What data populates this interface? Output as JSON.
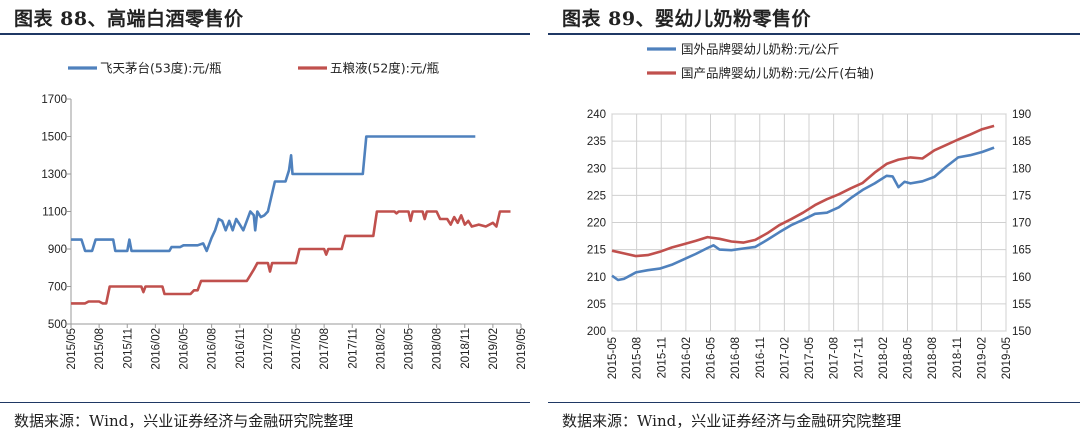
{
  "left": {
    "figure_title": "图表 88、高端白酒零售价",
    "source": "数据来源：Wind，兴业证券经济与金融研究院整理"
  },
  "right": {
    "figure_title": "图表 89、婴幼儿奶粉零售价",
    "source": "数据来源：Wind，兴业证券经济与金融研究院整理"
  },
  "colors": {
    "blue": "#4f81bd",
    "red": "#c0504d",
    "rule": "#1f3864"
  },
  "chart_data": [
    {
      "type": "line",
      "x": [
        "2015/05",
        "2015/08",
        "2015/11",
        "2016/02",
        "2016/05",
        "2016/08",
        "2016/11",
        "2017/02",
        "2017/05",
        "2017/08",
        "2017/11",
        "2018/02",
        "2018/05",
        "2018/08",
        "2018/11",
        "2019/02",
        "2019/05"
      ],
      "ylim": [
        500,
        1700
      ],
      "yticks": [
        500,
        700,
        900,
        1100,
        1300,
        1500,
        1700
      ],
      "legend_position": "top",
      "grid": false,
      "series": [
        {
          "name": "飞天茅台(53度):元/瓶",
          "color": "#4f81bd",
          "points": [
            [
              0,
              950
            ],
            [
              1.5,
              950
            ],
            [
              2,
              890
            ],
            [
              3,
              890
            ],
            [
              3.5,
              950
            ],
            [
              6,
              950
            ],
            [
              6.3,
              890
            ],
            [
              8,
              890
            ],
            [
              8.3,
              950
            ],
            [
              8.6,
              890
            ],
            [
              13,
              890
            ],
            [
              14,
              890
            ],
            [
              14.3,
              910
            ],
            [
              15.5,
              910
            ],
            [
              16,
              920
            ],
            [
              18,
              920
            ],
            [
              18.8,
              930
            ],
            [
              19.3,
              890
            ],
            [
              19.6,
              920
            ],
            [
              20,
              960
            ],
            [
              20.5,
              1000
            ],
            [
              21,
              1060
            ],
            [
              21.5,
              1050
            ],
            [
              22,
              1000
            ],
            [
              22.5,
              1050
            ],
            [
              23,
              1000
            ],
            [
              23.5,
              1060
            ],
            [
              24,
              1030
            ],
            [
              24.5,
              1000
            ],
            [
              25,
              1050
            ],
            [
              25.5,
              1100
            ],
            [
              26,
              1080
            ],
            [
              26.2,
              1000
            ],
            [
              26.5,
              1100
            ],
            [
              27,
              1070
            ],
            [
              27.5,
              1080
            ],
            [
              28,
              1100
            ],
            [
              29,
              1260
            ],
            [
              30.5,
              1260
            ],
            [
              31,
              1320
            ],
            [
              31.3,
              1400
            ],
            [
              31.5,
              1300
            ],
            [
              40,
              1300
            ],
            [
              41.5,
              1300
            ],
            [
              42,
              1500
            ],
            [
              57.5,
              1500
            ]
          ]
        },
        {
          "name": "五粮液(52度):元/瓶",
          "color": "#c0504d",
          "points": [
            [
              0,
              610
            ],
            [
              2,
              610
            ],
            [
              2.5,
              620
            ],
            [
              4,
              620
            ],
            [
              4.5,
              610
            ],
            [
              5,
              610
            ],
            [
              5.5,
              700
            ],
            [
              10,
              700
            ],
            [
              10.3,
              670
            ],
            [
              10.6,
              700
            ],
            [
              12,
              700
            ],
            [
              12.5,
              700
            ],
            [
              13,
              700
            ],
            [
              13.3,
              660
            ],
            [
              17,
              660
            ],
            [
              17.5,
              680
            ],
            [
              18,
              680
            ],
            [
              18.5,
              730
            ],
            [
              25,
              730
            ],
            [
              25.5,
              760
            ],
            [
              26,
              790
            ],
            [
              26.5,
              825
            ],
            [
              28,
              825
            ],
            [
              28.3,
              780
            ],
            [
              28.6,
              825
            ],
            [
              32,
              825
            ],
            [
              32.5,
              900
            ],
            [
              36,
              900
            ],
            [
              36.3,
              870
            ],
            [
              36.6,
              900
            ],
            [
              38,
              900
            ],
            [
              38.5,
              900
            ],
            [
              39,
              970
            ],
            [
              43,
              970
            ],
            [
              43.5,
              1100
            ],
            [
              46,
              1100
            ],
            [
              46.3,
              1090
            ],
            [
              46.6,
              1100
            ],
            [
              48,
              1100
            ],
            [
              48.3,
              1050
            ],
            [
              48.6,
              1100
            ],
            [
              50,
              1100
            ],
            [
              50.3,
              1060
            ],
            [
              50.6,
              1100
            ],
            [
              52,
              1100
            ],
            [
              52.5,
              1060
            ],
            [
              53.5,
              1060
            ],
            [
              54,
              1030
            ],
            [
              54.5,
              1070
            ],
            [
              55,
              1040
            ],
            [
              55.5,
              1080
            ],
            [
              56,
              1030
            ],
            [
              56.5,
              1050
            ],
            [
              57,
              1020
            ],
            [
              58,
              1030
            ],
            [
              59,
              1020
            ],
            [
              60,
              1040
            ],
            [
              60.5,
              1020
            ],
            [
              61,
              1100
            ],
            [
              62.5,
              1100
            ]
          ]
        }
      ]
    },
    {
      "type": "line",
      "x": [
        "2015-05",
        "2015-08",
        "2015-11",
        "2016-02",
        "2016-05",
        "2016-08",
        "2016-11",
        "2017-02",
        "2017-05",
        "2017-08",
        "2017-11",
        "2018-02",
        "2018-05",
        "2018-08",
        "2018-11",
        "2019-02",
        "2019-05"
      ],
      "ylim": [
        200,
        240
      ],
      "yticks": [
        200,
        205,
        210,
        215,
        220,
        225,
        230,
        235,
        240
      ],
      "y2lim": [
        150,
        190
      ],
      "y2ticks": [
        150,
        155,
        160,
        165,
        170,
        175,
        180,
        185,
        190
      ],
      "legend_position": "top",
      "grid": true,
      "series": [
        {
          "name": "国外品牌婴幼儿奶粉:元/公斤",
          "color": "#4f81bd",
          "axis": "left",
          "points": [
            [
              0,
              210.2
            ],
            [
              0.5,
              209.4
            ],
            [
              1,
              209.6
            ],
            [
              1.5,
              210.2
            ],
            [
              2,
              210.8
            ],
            [
              3,
              211.2
            ],
            [
              4,
              211.5
            ],
            [
              5,
              212.2
            ],
            [
              6,
              213.2
            ],
            [
              7,
              214.2
            ],
            [
              8,
              215.3
            ],
            [
              8.5,
              215.8
            ],
            [
              9,
              215.0
            ],
            [
              10,
              214.9
            ],
            [
              11,
              215.2
            ],
            [
              12,
              215.5
            ],
            [
              13,
              216.8
            ],
            [
              14,
              218.2
            ],
            [
              15,
              219.5
            ],
            [
              16,
              220.5
            ],
            [
              17,
              221.6
            ],
            [
              18,
              221.8
            ],
            [
              19,
              222.8
            ],
            [
              20,
              224.5
            ],
            [
              21,
              226.0
            ],
            [
              22,
              227.2
            ],
            [
              23,
              228.6
            ],
            [
              23.5,
              228.5
            ],
            [
              24,
              226.5
            ],
            [
              24.5,
              227.5
            ],
            [
              25,
              227.2
            ],
            [
              26,
              227.6
            ],
            [
              27,
              228.4
            ],
            [
              28,
              230.3
            ],
            [
              29,
              232.0
            ],
            [
              30,
              232.4
            ],
            [
              31,
              233.0
            ],
            [
              32,
              233.8
            ]
          ]
        },
        {
          "name": "国产品牌婴幼儿奶粉:元/公斤(右轴)",
          "color": "#c0504d",
          "axis": "right",
          "points": [
            [
              0,
              164.8
            ],
            [
              1,
              164.3
            ],
            [
              2,
              163.8
            ],
            [
              3,
              164.0
            ],
            [
              4,
              164.6
            ],
            [
              5,
              165.4
            ],
            [
              6,
              166.0
            ],
            [
              7,
              166.6
            ],
            [
              8,
              167.3
            ],
            [
              9,
              167.0
            ],
            [
              10,
              166.5
            ],
            [
              11,
              166.3
            ],
            [
              12,
              166.8
            ],
            [
              13,
              168.0
            ],
            [
              14,
              169.5
            ],
            [
              15,
              170.6
            ],
            [
              16,
              171.8
            ],
            [
              17,
              173.2
            ],
            [
              18,
              174.3
            ],
            [
              19,
              175.2
            ],
            [
              20,
              176.3
            ],
            [
              21,
              177.3
            ],
            [
              22,
              179.2
            ],
            [
              23,
              180.8
            ],
            [
              24,
              181.6
            ],
            [
              25,
              182.0
            ],
            [
              26,
              181.8
            ],
            [
              27,
              183.3
            ],
            [
              28,
              184.3
            ],
            [
              29,
              185.3
            ],
            [
              30,
              186.2
            ],
            [
              31,
              187.2
            ],
            [
              32,
              187.8
            ]
          ]
        }
      ]
    }
  ]
}
